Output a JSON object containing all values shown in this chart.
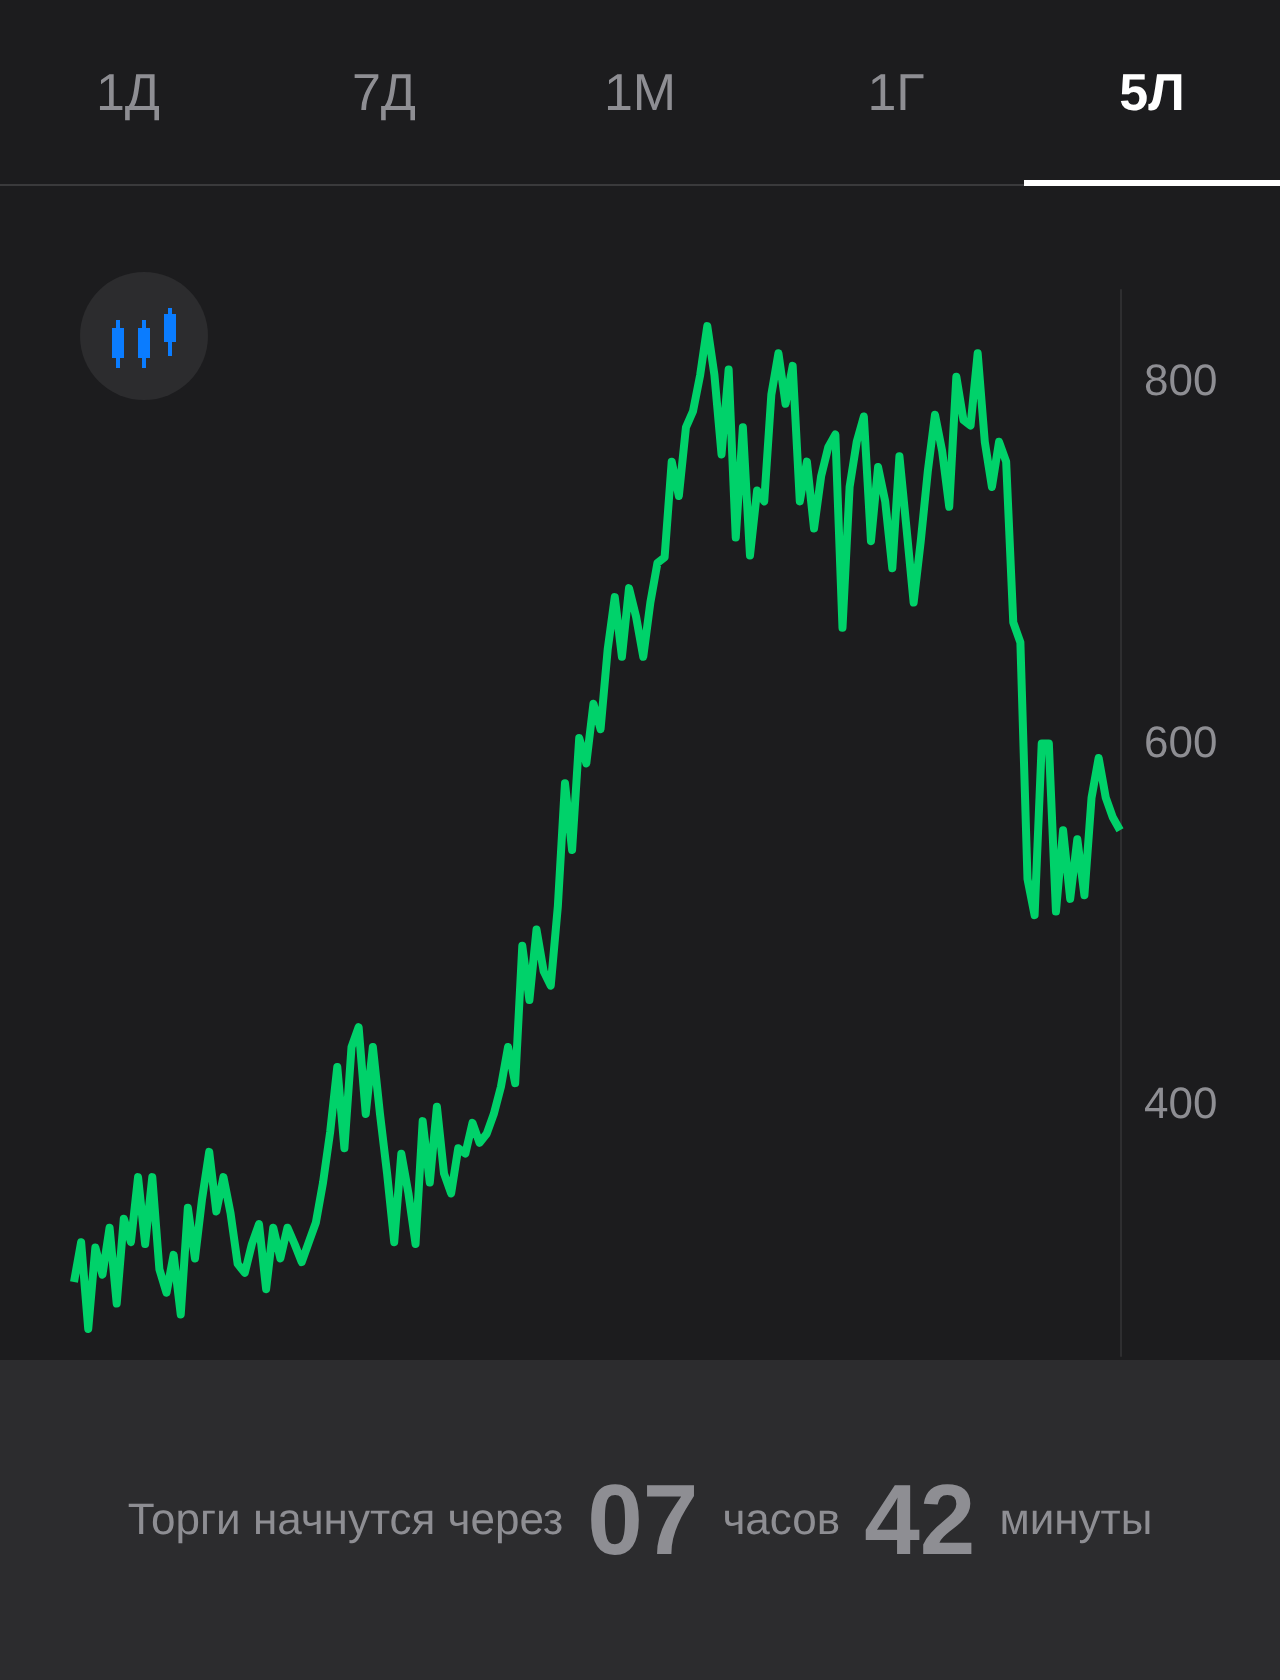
{
  "chart_data": {
    "type": "line",
    "annotations": [
      "1Д",
      "7Д",
      "1М",
      "1Г",
      "5Л",
      "Торги начнутся через",
      "07",
      "часов",
      "42",
      "минуты"
    ],
    "categories": [
      null,
      null,
      null,
      null,
      null,
      null,
      null,
      null,
      null,
      null,
      null,
      null,
      null,
      null,
      null,
      null,
      null,
      null,
      null,
      null,
      null,
      null,
      null,
      null,
      null,
      null,
      null,
      null,
      null,
      null,
      null,
      null,
      null,
      null,
      null,
      null,
      null,
      null,
      null,
      null,
      null,
      null,
      null,
      null,
      null,
      null,
      null,
      null,
      null,
      null,
      null,
      null,
      null,
      null,
      null,
      null,
      null,
      null,
      null,
      null,
      null,
      null,
      null,
      null,
      null,
      null,
      null,
      null,
      null,
      null,
      null,
      null,
      null,
      null,
      null,
      null,
      null,
      null,
      null,
      null,
      null,
      null,
      null,
      null,
      null,
      null,
      null,
      null,
      null,
      null,
      null,
      null,
      null,
      null,
      null,
      null,
      null,
      null,
      null,
      null,
      null,
      null,
      null,
      null,
      null,
      null,
      null,
      null,
      null,
      null,
      null,
      null,
      null,
      null,
      null,
      null,
      null,
      null,
      null,
      null,
      null,
      null,
      null,
      null,
      null,
      null,
      null,
      null,
      null,
      null,
      null,
      null,
      null,
      null,
      null,
      null,
      null,
      null,
      null,
      null,
      null,
      null,
      null,
      null,
      null,
      null,
      null,
      null
    ],
    "series": [
      {
        "color": "#00d26a",
        "values": [
          301,
          323,
          275,
          320,
          305,
          331,
          289,
          336,
          323,
          359,
          322,
          359,
          308,
          295,
          316,
          283,
          342,
          314,
          347,
          373,
          340,
          359,
          339,
          311,
          306,
          322,
          333,
          297,
          331,
          314,
          331,
          322,
          312,
          323,
          334,
          356,
          384,
          420,
          375,
          431,
          442,
          394,
          431,
          394,
          361,
          323,
          372,
          350,
          322,
          390,
          356,
          398,
          361,
          350,
          375,
          372,
          389,
          378,
          383,
          394,
          409,
          431,
          411,
          487,
          457,
          496,
          473,
          465,
          509,
          577,
          540,
          602,
          588,
          621,
          607,
          651,
          680,
          647,
          685,
          669,
          647,
          677,
          699,
          702,
          755,
          736,
          774,
          783,
          803,
          830,
          803,
          759,
          806,
          713,
          774,
          703,
          739,
          733,
          792,
          815,
          787,
          808,
          733,
          755,
          718,
          747,
          763,
          770,
          663,
          741,
          766,
          780,
          711,
          752,
          733,
          696,
          758,
          718,
          677,
          711,
          750,
          781,
          761,
          730,
          802,
          778,
          775,
          815,
          766,
          741,
          766,
          755,
          666,
          655,
          524,
          504,
          599,
          599,
          506,
          551,
          513,
          546,
          515,
          569,
          591,
          569,
          558,
          551
        ]
      }
    ],
    "ylim": [
      260,
      850
    ],
    "yticks": [
      400,
      600,
      800
    ],
    "tick_labels": "y",
    "grid": false,
    "line_style": "solid"
  }
}
